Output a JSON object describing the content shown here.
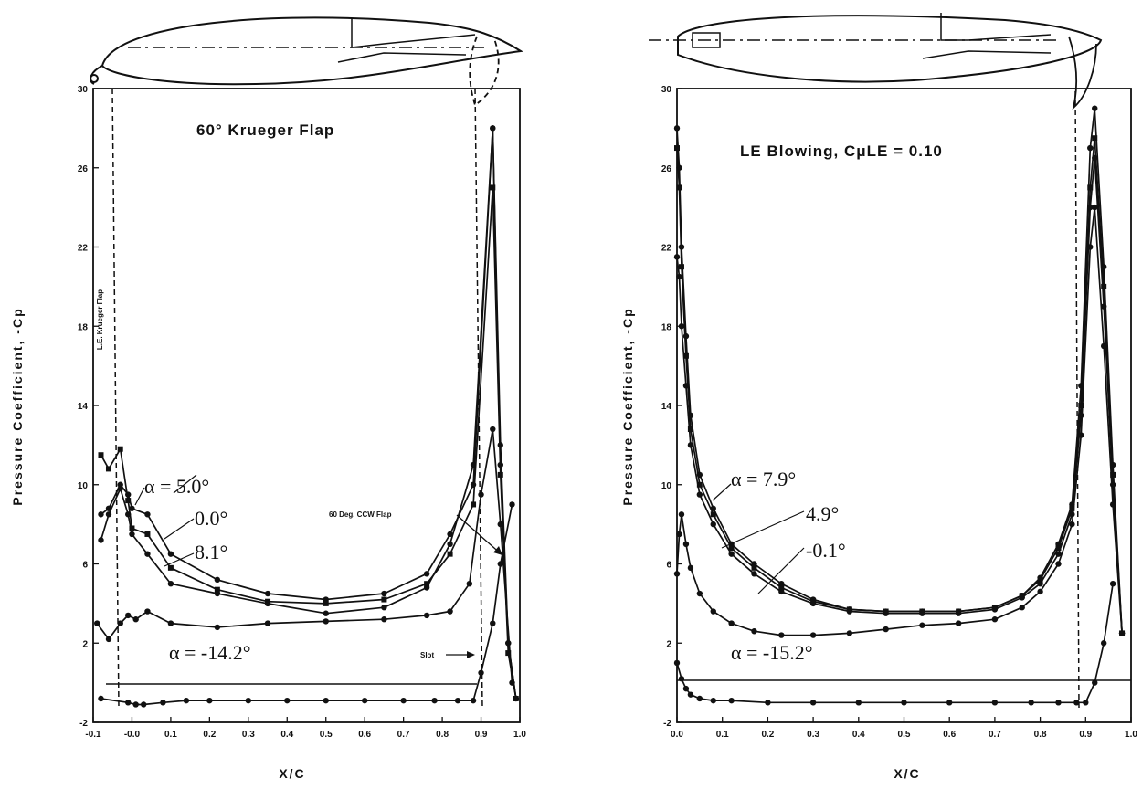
{
  "chart_data": [
    {
      "type": "line",
      "title": "60° Krueger Flap",
      "xlabel": "X/C",
      "ylabel": "Pressure Coefficient, -Cp",
      "xlim": [
        -0.1,
        1.0
      ],
      "ylim": [
        -2,
        30
      ],
      "xticks": [
        "-0.1",
        "-0.0",
        "0.1",
        "0.2",
        "0.3",
        "0.4",
        "0.5",
        "0.6",
        "0.7",
        "0.8",
        "0.9",
        "1.0"
      ],
      "yticks": [
        "-2",
        "2",
        "6",
        "10",
        "14",
        "18",
        "22",
        "26",
        "30"
      ],
      "grid": false,
      "annotations": [
        "L.E. Krueger Flap",
        "60 Deg. CCW Flap",
        "Slot"
      ],
      "series": [
        {
          "name": "α = 5.0°",
          "x": [
            -0.08,
            -0.06,
            -0.03,
            -0.01,
            0.0,
            0.04,
            0.1,
            0.22,
            0.35,
            0.5,
            0.65,
            0.76,
            0.82,
            0.88,
            0.93,
            0.95,
            0.97,
            0.99
          ],
          "y": [
            8.5,
            8.8,
            10.0,
            9.5,
            8.8,
            8.5,
            6.5,
            5.2,
            4.5,
            4.2,
            4.5,
            5.5,
            7.5,
            10.0,
            28.0,
            12.0,
            2.0,
            -0.8
          ]
        },
        {
          "name": "0.0°",
          "x": [
            -0.08,
            -0.06,
            -0.03,
            -0.01,
            0.0,
            0.04,
            0.1,
            0.22,
            0.35,
            0.5,
            0.65,
            0.76,
            0.82,
            0.88,
            0.93,
            0.95,
            0.97,
            0.99
          ],
          "y": [
            11.5,
            10.8,
            11.8,
            9.2,
            7.8,
            7.5,
            5.8,
            4.7,
            4.1,
            4.0,
            4.2,
            5.0,
            6.5,
            9.0,
            25.0,
            10.5,
            1.5,
            -0.8
          ]
        },
        {
          "name": "8.1°",
          "x": [
            -0.08,
            -0.06,
            -0.03,
            -0.01,
            0.0,
            0.04,
            0.1,
            0.22,
            0.35,
            0.5,
            0.65,
            0.76,
            0.82,
            0.88,
            0.93,
            0.95,
            0.97,
            0.99
          ],
          "y": [
            7.2,
            8.5,
            9.8,
            8.5,
            7.5,
            6.5,
            5.0,
            4.5,
            4.0,
            3.5,
            3.8,
            4.8,
            7.0,
            11.0,
            28.0,
            11.0,
            2.0,
            -0.8
          ]
        },
        {
          "name": "α = -14.2°",
          "x": [
            -0.09,
            -0.06,
            -0.03,
            -0.01,
            0.01,
            0.04,
            0.1,
            0.22,
            0.35,
            0.5,
            0.65,
            0.76,
            0.82,
            0.87,
            0.9,
            0.93,
            0.95,
            0.98
          ],
          "y": [
            3.0,
            2.2,
            3.0,
            3.4,
            3.2,
            3.6,
            3.0,
            2.8,
            3.0,
            3.1,
            3.2,
            3.4,
            3.6,
            5.0,
            9.5,
            12.8,
            8.0,
            0.0
          ]
        },
        {
          "name": "",
          "x": [
            -0.08,
            -0.01,
            0.01,
            0.03,
            0.08,
            0.14,
            0.2,
            0.3,
            0.4,
            0.5,
            0.6,
            0.7,
            0.78,
            0.84,
            0.88,
            0.9,
            0.93,
            0.95,
            0.98
          ],
          "y": [
            -0.8,
            -1.0,
            -1.1,
            -1.1,
            -1.0,
            -0.9,
            -0.9,
            -0.9,
            -0.9,
            -0.9,
            -0.9,
            -0.9,
            -0.9,
            -0.9,
            -0.9,
            0.5,
            3.0,
            6.0,
            9.0
          ]
        }
      ]
    },
    {
      "type": "line",
      "title": "LE Blowing, CμLE = 0.10",
      "xlabel": "X/C",
      "ylabel": "Pressure Coefficient, -Cp",
      "xlim": [
        0.0,
        1.0
      ],
      "ylim": [
        -2,
        30
      ],
      "xticks": [
        "0.0",
        "0.1",
        "0.2",
        "0.3",
        "0.4",
        "0.5",
        "0.6",
        "0.7",
        "0.8",
        "0.9",
        "1.0"
      ],
      "yticks": [
        "-2",
        "2",
        "6",
        "10",
        "14",
        "18",
        "22",
        "26",
        "30"
      ],
      "grid": false,
      "annotations": [],
      "series": [
        {
          "name": "α = 7.9°",
          "x": [
            0.0,
            0.005,
            0.01,
            0.02,
            0.03,
            0.05,
            0.08,
            0.12,
            0.17,
            0.23,
            0.3,
            0.38,
            0.46,
            0.54,
            0.62,
            0.7,
            0.76,
            0.8,
            0.84,
            0.87,
            0.89,
            0.91,
            0.92,
            0.94,
            0.96,
            0.98
          ],
          "y": [
            28.0,
            26.0,
            22.0,
            17.5,
            13.5,
            10.5,
            8.8,
            7.0,
            6.0,
            5.0,
            4.2,
            3.7,
            3.6,
            3.6,
            3.6,
            3.8,
            4.4,
            5.3,
            7.0,
            9.0,
            15.0,
            27.0,
            29.0,
            21.0,
            11.0,
            2.5
          ]
        },
        {
          "name": "4.9°",
          "x": [
            0.0,
            0.005,
            0.01,
            0.02,
            0.03,
            0.05,
            0.08,
            0.12,
            0.17,
            0.23,
            0.3,
            0.38,
            0.46,
            0.54,
            0.62,
            0.7,
            0.76,
            0.8,
            0.84,
            0.87,
            0.89,
            0.91,
            0.92,
            0.94,
            0.96,
            0.98
          ],
          "y": [
            27.0,
            25.0,
            21.0,
            16.5,
            12.8,
            10.0,
            8.5,
            6.8,
            5.8,
            4.8,
            4.1,
            3.7,
            3.6,
            3.6,
            3.6,
            3.8,
            4.4,
            5.2,
            6.8,
            8.8,
            14.0,
            25.0,
            27.5,
            20.0,
            10.5,
            2.5
          ]
        },
        {
          "name": "-0.1°",
          "x": [
            0.0,
            0.005,
            0.01,
            0.02,
            0.03,
            0.05,
            0.08,
            0.12,
            0.17,
            0.23,
            0.3,
            0.38,
            0.46,
            0.54,
            0.62,
            0.7,
            0.76,
            0.8,
            0.84,
            0.87,
            0.89,
            0.91,
            0.92,
            0.94,
            0.96,
            0.98
          ],
          "y": [
            21.5,
            20.5,
            18.0,
            15.0,
            12.0,
            9.5,
            8.0,
            6.5,
            5.5,
            4.6,
            4.0,
            3.6,
            3.5,
            3.5,
            3.5,
            3.7,
            4.3,
            5.0,
            6.5,
            8.5,
            13.5,
            24.0,
            26.5,
            19.0,
            10.0,
            2.5
          ]
        },
        {
          "name": "α = -15.2°",
          "x": [
            0.0,
            0.005,
            0.01,
            0.02,
            0.03,
            0.05,
            0.08,
            0.12,
            0.17,
            0.23,
            0.3,
            0.38,
            0.46,
            0.54,
            0.62,
            0.7,
            0.76,
            0.8,
            0.84,
            0.87,
            0.89,
            0.91,
            0.92,
            0.94,
            0.96,
            0.98
          ],
          "y": [
            5.5,
            7.5,
            8.5,
            7.0,
            5.8,
            4.5,
            3.6,
            3.0,
            2.6,
            2.4,
            2.4,
            2.5,
            2.7,
            2.9,
            3.0,
            3.2,
            3.8,
            4.6,
            6.0,
            8.0,
            12.5,
            22.0,
            24.0,
            17.0,
            9.0,
            2.5
          ]
        },
        {
          "name": "",
          "x": [
            0.0,
            0.01,
            0.02,
            0.03,
            0.05,
            0.08,
            0.12,
            0.2,
            0.3,
            0.4,
            0.5,
            0.6,
            0.7,
            0.78,
            0.84,
            0.88,
            0.9,
            0.92,
            0.94,
            0.96
          ],
          "y": [
            1.0,
            0.2,
            -0.3,
            -0.6,
            -0.8,
            -0.9,
            -0.9,
            -1.0,
            -1.0,
            -1.0,
            -1.0,
            -1.0,
            -1.0,
            -1.0,
            -1.0,
            -1.0,
            -1.0,
            0.0,
            2.0,
            5.0
          ]
        }
      ]
    }
  ]
}
